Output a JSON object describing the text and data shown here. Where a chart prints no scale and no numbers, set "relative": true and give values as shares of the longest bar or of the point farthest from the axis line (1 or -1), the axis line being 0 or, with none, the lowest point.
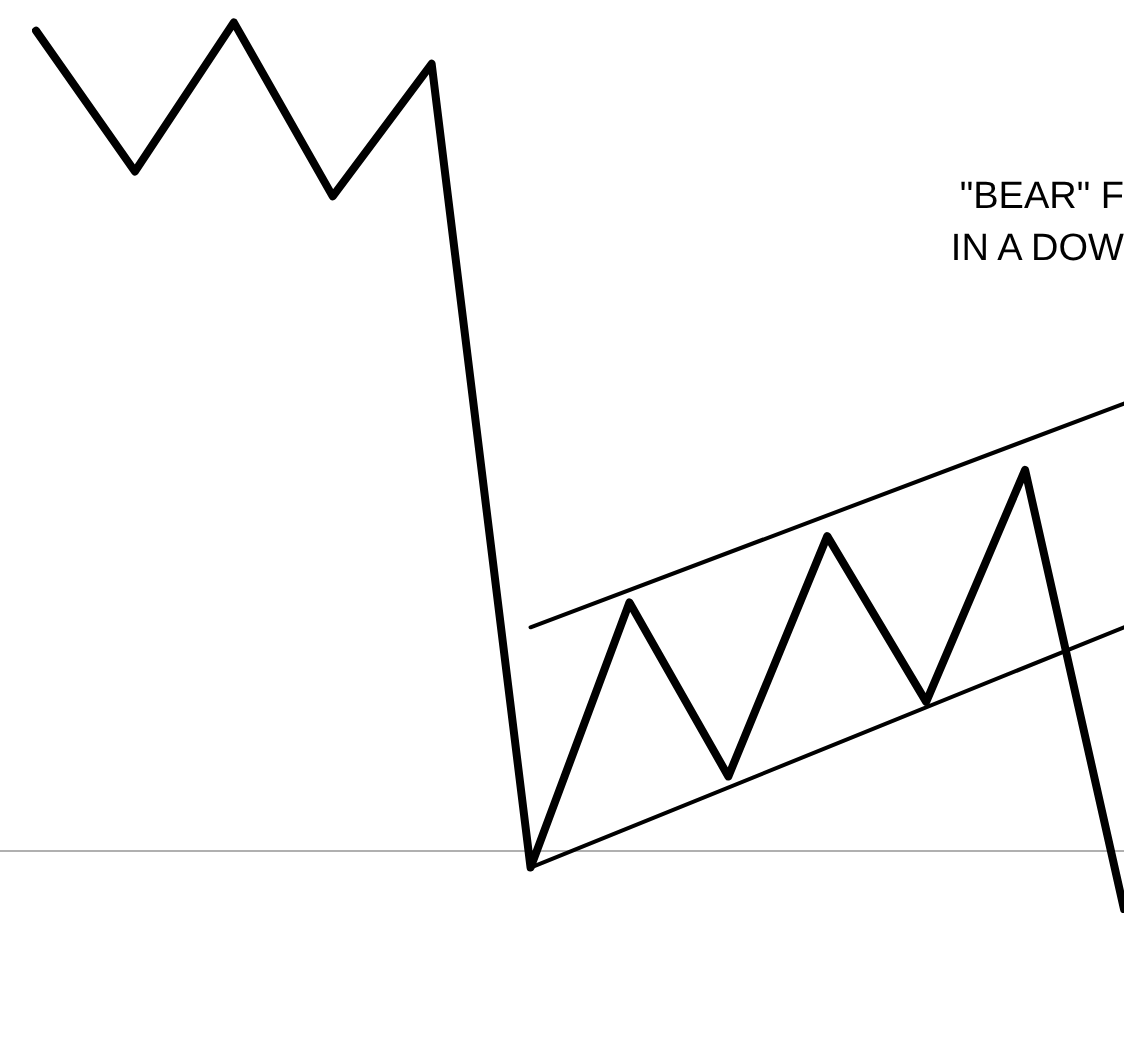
{
  "chart_data": {
    "type": "line",
    "relative": true,
    "tick_labels": false,
    "legend": false,
    "marker": "none",
    "line_style": "solid",
    "annotations": [
      "\"BEAR\" F",
      "IN A DOW"
    ],
    "categories": [
      null,
      null,
      null,
      null,
      null,
      null,
      null,
      null,
      null,
      null,
      null,
      null
    ],
    "series": [
      {
        "color": "#000000",
        "values": [
          0.99,
          0.82,
          1,
          0.79,
          0.95,
          -0.02,
          0.3,
          0.09,
          0.38,
          0.18,
          0.46,
          -0.07
        ]
      },
      {
        "color": "#000000",
        "values": [
          null,
          null,
          null,
          null,
          null,
          0.27,
          null,
          null,
          null,
          null,
          null,
          0.54
        ]
      },
      {
        "color": "#000000",
        "values": [
          null,
          null,
          null,
          null,
          null,
          -0.02,
          null,
          null,
          null,
          null,
          null,
          0.27
        ]
      }
    ]
  }
}
